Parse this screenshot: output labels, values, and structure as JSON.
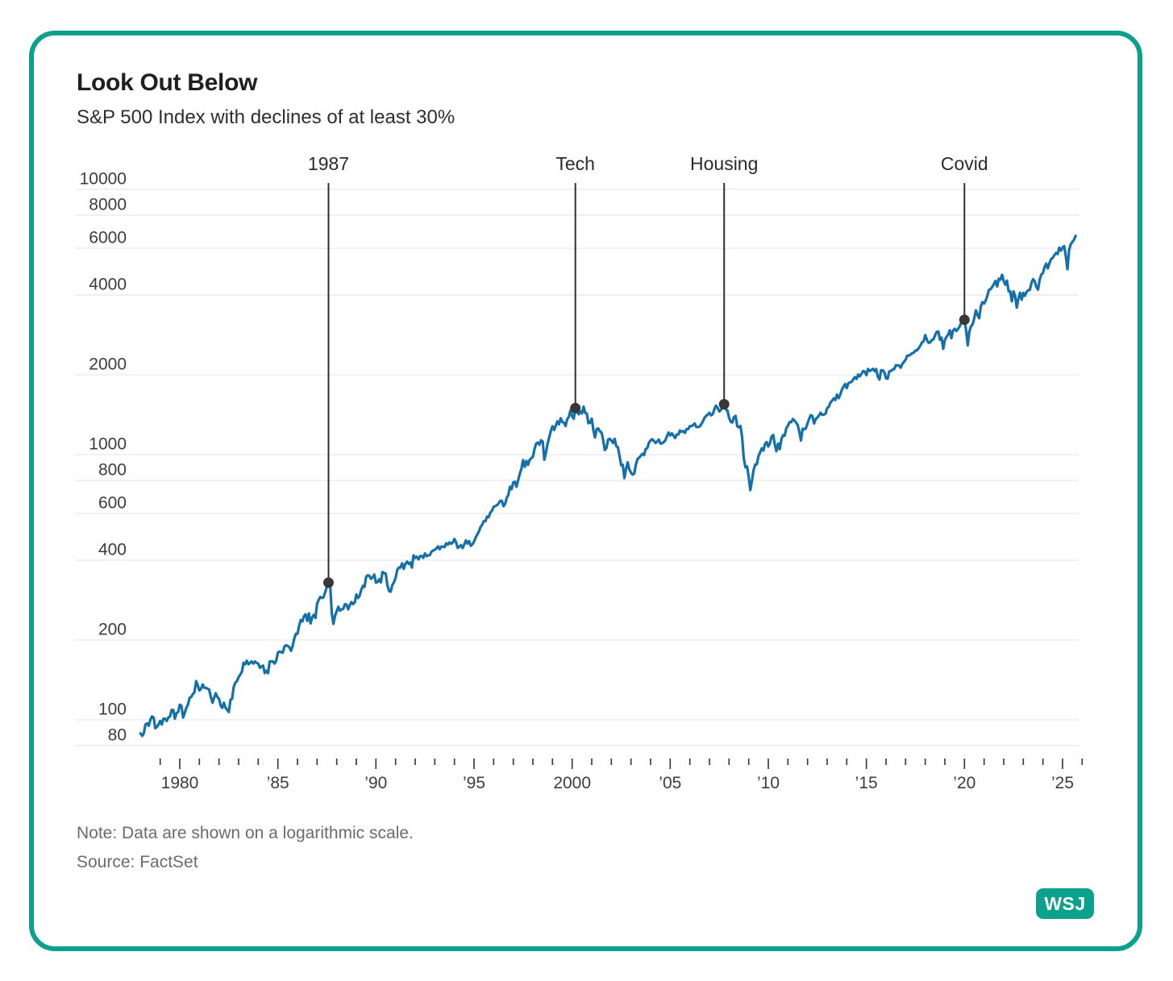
{
  "footer": {
    "note": "Note: Data are shown on a logarithmic scale.",
    "source": "Source: FactSet",
    "logo": "WSJ"
  },
  "colors": {
    "accent_teal": "#0CA08E",
    "line_blue": "#1470A8",
    "marker_dark": "#383838",
    "annotation_line": "#2f2f2f",
    "grid": "#e3e3e3",
    "axis_text": "#3d3d3d"
  },
  "chart_data": {
    "type": "line",
    "title": "Look Out Below",
    "subtitle": "S&P 500 Index with declines of at least 30%",
    "scale": "logarithmic",
    "grid": "horizontal-only",
    "legend": "none",
    "ylim": [
      80,
      10000
    ],
    "y_ticks": [
      10000,
      8000,
      6000,
      4000,
      2000,
      1000,
      800,
      600,
      400,
      200,
      100,
      80
    ],
    "x_range_years": [
      1974.7,
      2026.2
    ],
    "x_ticks": [
      {
        "label": "1980",
        "year": 1980
      },
      {
        "label": "’85",
        "year": 1985
      },
      {
        "label": "’90",
        "year": 1990
      },
      {
        "label": "’95",
        "year": 1995
      },
      {
        "label": "2000",
        "year": 2000
      },
      {
        "label": "’05",
        "year": 2005
      },
      {
        "label": "’10",
        "year": 2010
      },
      {
        "label": "’15",
        "year": 2015
      },
      {
        "label": "’20",
        "year": 2020
      },
      {
        "label": "’25",
        "year": 2025
      }
    ],
    "x_minor_ticks": {
      "from": 1979,
      "to": 2026,
      "step_years": 1
    },
    "annotations": [
      {
        "label": "1987",
        "index": 115,
        "peak_value": 329
      },
      {
        "label": "Tech",
        "index": 266,
        "peak_value": 1498
      },
      {
        "label": "Housing",
        "index": 357,
        "peak_value": 1549
      },
      {
        "label": "Covid",
        "index": 504,
        "peak_value": 3225
      }
    ],
    "series": {
      "name": "S&P 500 Index",
      "start_year": 1978,
      "interval": "monthly",
      "values": [
        89,
        87,
        89,
        96,
        97,
        95,
        100,
        103,
        102,
        93,
        94,
        96,
        99,
        96,
        101,
        101,
        99,
        102,
        103,
        109,
        109,
        101,
        106,
        107,
        114,
        113,
        102,
        106,
        111,
        114,
        121,
        122,
        125,
        127,
        140,
        135,
        129,
        131,
        136,
        132,
        132,
        131,
        130,
        122,
        116,
        121,
        126,
        122,
        120,
        113,
        111,
        116,
        111,
        109,
        107,
        119,
        120,
        133,
        138,
        140,
        145,
        148,
        152,
        164,
        162,
        167,
        162,
        164,
        166,
        163,
        166,
        164,
        163,
        157,
        159,
        160,
        150,
        153,
        150,
        166,
        166,
        166,
        163,
        167,
        179,
        181,
        180,
        179,
        189,
        191,
        190,
        188,
        182,
        189,
        202,
        211,
        211,
        226,
        238,
        235,
        246,
        250,
        236,
        252,
        231,
        243,
        249,
        242,
        274,
        284,
        291,
        288,
        290,
        304,
        318,
        329,
        321,
        251,
        230,
        247,
        257,
        267,
        258,
        261,
        262,
        273,
        272,
        261,
        271,
        278,
        273,
        277,
        297,
        288,
        294,
        309,
        320,
        317,
        346,
        351,
        349,
        340,
        345,
        353,
        329,
        331,
        339,
        330,
        361,
        358,
        356,
        322,
        306,
        304,
        322,
        330,
        343,
        367,
        375,
        375,
        389,
        371,
        387,
        395,
        387,
        392,
        375,
        417,
        408,
        412,
        403,
        414,
        415,
        408,
        424,
        414,
        417,
        418,
        431,
        435,
        438,
        443,
        451,
        440,
        450,
        450,
        448,
        463,
        458,
        467,
        461,
        466,
        481,
        467,
        445,
        450,
        456,
        444,
        458,
        475,
        462,
        472,
        453,
        459,
        470,
        487,
        500,
        514,
        533,
        544,
        562,
        561,
        584,
        581,
        605,
        615,
        636,
        640,
        645,
        654,
        669,
        670,
        639,
        651,
        687,
        705,
        757,
        740,
        786,
        790,
        757,
        801,
        848,
        885,
        954,
        899,
        947,
        914,
        955,
        970,
        980,
        1049,
        1101,
        1111,
        1090,
        1133,
        1120,
        957,
        1017,
        1098,
        1163,
        1229,
        1279,
        1238,
        1286,
        1335,
        1301,
        1372,
        1328,
        1320,
        1282,
        1362,
        1388,
        1469,
        1394,
        1366,
        1498,
        1452,
        1420,
        1454,
        1430,
        1517,
        1436,
        1429,
        1314,
        1320,
        1366,
        1239,
        1160,
        1249,
        1255,
        1224,
        1211,
        1133,
        1040,
        1059,
        1139,
        1148,
        1130,
        1106,
        1147,
        1076,
        1067,
        989,
        911,
        916,
        815,
        885,
        936,
        879,
        855,
        841,
        848,
        916,
        963,
        974,
        990,
        1008,
        995,
        1050,
        1058,
        1111,
        1131,
        1144,
        1126,
        1107,
        1120,
        1140,
        1101,
        1104,
        1114,
        1130,
        1173,
        1211,
        1181,
        1203,
        1180,
        1156,
        1191,
        1191,
        1234,
        1220,
        1228,
        1207,
        1249,
        1248,
        1280,
        1280,
        1294,
        1310,
        1270,
        1270,
        1276,
        1303,
        1335,
        1377,
        1400,
        1418,
        1438,
        1406,
        1420,
        1482,
        1530,
        1503,
        1455,
        1473,
        1526,
        1549,
        1481,
        1468,
        1378,
        1330,
        1322,
        1385,
        1400,
        1280,
        1267,
        1282,
        1166,
        968,
        896,
        903,
        825,
        735,
        797,
        872,
        919,
        919,
        987,
        1020,
        1057,
        1036,
        1095,
        1115,
        1073,
        1104,
        1169,
        1186,
        1089,
        1030,
        1101,
        1049,
        1141,
        1183,
        1180,
        1257,
        1286,
        1327,
        1325,
        1363,
        1345,
        1320,
        1292,
        1218,
        1131,
        1253,
        1246,
        1257,
        1312,
        1365,
        1408,
        1397,
        1310,
        1362,
        1379,
        1406,
        1440,
        1412,
        1416,
        1426,
        1498,
        1514,
        1569,
        1597,
        1630,
        1606,
        1685,
        1632,
        1681,
        1756,
        1805,
        1848,
        1782,
        1859,
        1872,
        1883,
        1923,
        1960,
        1930,
        2003,
        1972,
        2018,
        2067,
        2058,
        1994,
        2104,
        2067,
        2085,
        2107,
        2063,
        2103,
        1972,
        1920,
        2079,
        2080,
        2043,
        1940,
        1932,
        2059,
        2065,
        2096,
        2098,
        2173,
        2170,
        2168,
        2126,
        2198,
        2238,
        2278,
        2363,
        2362,
        2384,
        2411,
        2423,
        2470,
        2471,
        2519,
        2575,
        2647,
        2673,
        2823,
        2713,
        2640,
        2648,
        2705,
        2718,
        2816,
        2901,
        2913,
        2711,
        2760,
        2506,
        2704,
        2784,
        2834,
        2945,
        2752,
        2941,
        2980,
        2926,
        2976,
        3037,
        3140,
        3230,
        3225,
        2954,
        2584,
        2912,
        3044,
        3100,
        3271,
        3500,
        3363,
        3269,
        3621,
        3756,
        3714,
        3811,
        3972,
        4181,
        4204,
        4297,
        4395,
        4522,
        4307,
        4605,
        4567,
        4766,
        4515,
        4373,
        4530,
        4131,
        4132,
        3785,
        4130,
        3955,
        3585,
        3871,
        4080,
        3839,
        4076,
        3970,
        4109,
        4169,
        4179,
        4450,
        4588,
        4507,
        4288,
        4193,
        4567,
        4769,
        4845,
        5096,
        5254,
        5035,
        5277,
        5460,
        5522,
        5648,
        5762,
        5705,
        6032,
        5881,
        6040,
        6115,
        5611,
        5000,
        5911,
        6204,
        6339,
        6460,
        6688
      ]
    }
  }
}
